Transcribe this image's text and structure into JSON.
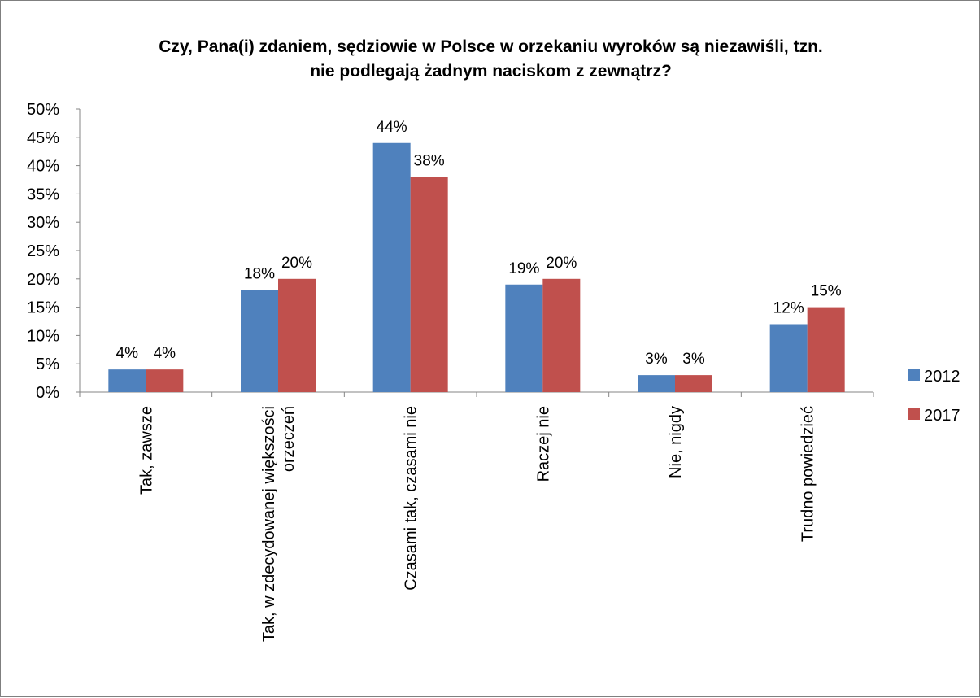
{
  "chart_data": {
    "type": "bar",
    "title_lines": [
      "Czy, Pana(i) zdaniem, sędziowie w Polsce w orzekaniu wyroków są niezawiśli, tzn.",
      "nie podlegają żadnym naciskom z zewnątrz?"
    ],
    "categories": [
      [
        "Tak, zawsze"
      ],
      [
        "Tak, w zdecydowanej większości",
        "orzeczeń"
      ],
      [
        "Czasami tak, czasami nie"
      ],
      [
        "Raczej nie"
      ],
      [
        "Nie, nigdy"
      ],
      [
        "Trudno powiedzieć"
      ]
    ],
    "series": [
      {
        "name": "2012",
        "color": "#4f81bd",
        "values": [
          4,
          18,
          44,
          19,
          3,
          12
        ],
        "labels": [
          "4%",
          "18%",
          "44%",
          "19%",
          "3%",
          "12%"
        ]
      },
      {
        "name": "2017",
        "color": "#c0504d",
        "values": [
          4,
          20,
          38,
          20,
          3,
          15
        ],
        "labels": [
          "4%",
          "20%",
          "38%",
          "20%",
          "3%",
          "15%"
        ]
      }
    ],
    "y_ticks": [
      "0%",
      "5%",
      "10%",
      "15%",
      "20%",
      "25%",
      "30%",
      "35%",
      "40%",
      "45%",
      "50%"
    ],
    "ylim": [
      0,
      50
    ],
    "xlabel": "",
    "ylabel": "",
    "grid": false,
    "legend_position": "right"
  }
}
